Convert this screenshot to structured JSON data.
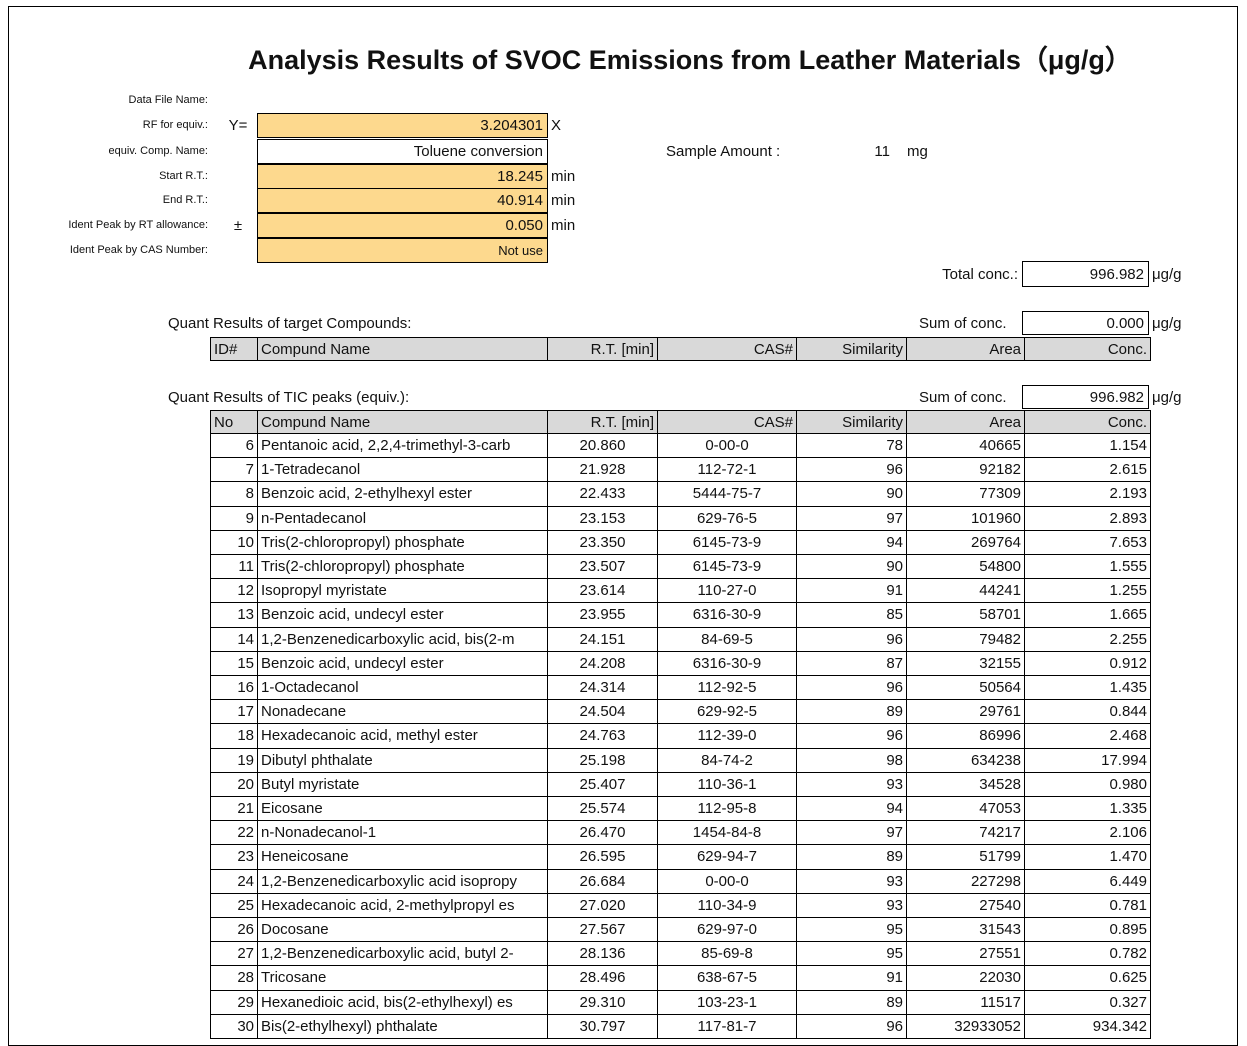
{
  "title": "Analysis Results of SVOC Emissions from Leather Materials（μg/g）",
  "settings": [
    {
      "label": "Data File Name:"
    },
    {
      "label": "RF for equiv.:",
      "prefix": "Y=",
      "value": "3.204301",
      "unit": "X"
    },
    {
      "label": "equiv. Comp. Name:",
      "value": "Toluene conversion"
    },
    {
      "label": "Start R.T.:",
      "value": "18.245",
      "unit": "min"
    },
    {
      "label": "End R.T.:",
      "value": "40.914",
      "unit": "min"
    },
    {
      "label": "Ident Peak by RT allowance:",
      "prefix": "±",
      "value": "0.050",
      "unit": "min"
    },
    {
      "label": "Ident Peak by CAS Number:",
      "value": "Not use"
    }
  ],
  "sample": {
    "label": "Sample Amount :",
    "value": "11",
    "unit": "mg"
  },
  "total": {
    "label": "Total conc.:",
    "value": "996.982",
    "unit": "μg/g"
  },
  "target": {
    "title": "Quant Results of target Compounds:",
    "sum_label": "Sum of  conc.",
    "sum_value": "0.000",
    "sum_unit": "μg/g",
    "columns": [
      "ID#",
      "Compund Name",
      "R.T. [min]",
      "CAS#",
      "Similarity",
      "Area",
      "Conc."
    ]
  },
  "tic": {
    "title": "Quant Results of TIC peaks (equiv.):",
    "sum_label": "Sum of  conc.",
    "sum_value": "996.982",
    "sum_unit": "μg/g",
    "columns": [
      "No",
      "Compund Name",
      "R.T. [min]",
      "CAS#",
      "Similarity",
      "Area",
      "Conc."
    ],
    "rows": [
      [
        "6",
        "Pentanoic acid, 2,2,4-trimethyl-3-carb",
        "20.860",
        "0-00-0",
        "78",
        "40665",
        "1.154"
      ],
      [
        "7",
        "1-Tetradecanol",
        "21.928",
        "112-72-1",
        "96",
        "92182",
        "2.615"
      ],
      [
        "8",
        "Benzoic acid, 2-ethylhexyl ester",
        "22.433",
        "5444-75-7",
        "90",
        "77309",
        "2.193"
      ],
      [
        "9",
        "n-Pentadecanol",
        "23.153",
        "629-76-5",
        "97",
        "101960",
        "2.893"
      ],
      [
        "10",
        "Tris(2-chloropropyl) phosphate",
        "23.350",
        "6145-73-9",
        "94",
        "269764",
        "7.653"
      ],
      [
        "11",
        "Tris(2-chloropropyl) phosphate",
        "23.507",
        "6145-73-9",
        "90",
        "54800",
        "1.555"
      ],
      [
        "12",
        "Isopropyl myristate",
        "23.614",
        "110-27-0",
        "91",
        "44241",
        "1.255"
      ],
      [
        "13",
        "Benzoic acid, undecyl ester",
        "23.955",
        "6316-30-9",
        "85",
        "58701",
        "1.665"
      ],
      [
        "14",
        "1,2-Benzenedicarboxylic acid, bis(2-m",
        "24.151",
        "84-69-5",
        "96",
        "79482",
        "2.255"
      ],
      [
        "15",
        "Benzoic acid, undecyl ester",
        "24.208",
        "6316-30-9",
        "87",
        "32155",
        "0.912"
      ],
      [
        "16",
        "1-Octadecanol",
        "24.314",
        "112-92-5",
        "96",
        "50564",
        "1.435"
      ],
      [
        "17",
        "Nonadecane",
        "24.504",
        "629-92-5",
        "89",
        "29761",
        "0.844"
      ],
      [
        "18",
        "Hexadecanoic acid, methyl ester",
        "24.763",
        "112-39-0",
        "96",
        "86996",
        "2.468"
      ],
      [
        "19",
        "Dibutyl phthalate",
        "25.198",
        "84-74-2",
        "98",
        "634238",
        "17.994"
      ],
      [
        "20",
        "Butyl myristate",
        "25.407",
        "110-36-1",
        "93",
        "34528",
        "0.980"
      ],
      [
        "21",
        "Eicosane",
        "25.574",
        "112-95-8",
        "94",
        "47053",
        "1.335"
      ],
      [
        "22",
        "n-Nonadecanol-1",
        "26.470",
        "1454-84-8",
        "97",
        "74217",
        "2.106"
      ],
      [
        "23",
        "Heneicosane",
        "26.595",
        "629-94-7",
        "89",
        "51799",
        "1.470"
      ],
      [
        "24",
        "1,2-Benzenedicarboxylic acid isopropy",
        "26.684",
        "0-00-0",
        "93",
        "227298",
        "6.449"
      ],
      [
        "25",
        "Hexadecanoic acid, 2-methylpropyl es",
        "27.020",
        "110-34-9",
        "93",
        "27540",
        "0.781"
      ],
      [
        "26",
        "Docosane",
        "27.567",
        "629-97-0",
        "95",
        "31543",
        "0.895"
      ],
      [
        "27",
        "1,2-Benzenedicarboxylic acid, butyl 2-",
        "28.136",
        "85-69-8",
        "95",
        "27551",
        "0.782"
      ],
      [
        "28",
        "Tricosane",
        "28.496",
        "638-67-5",
        "91",
        "22030",
        "0.625"
      ],
      [
        "29",
        "Hexanedioic acid, bis(2-ethylhexyl) es",
        "29.310",
        "103-23-1",
        "89",
        "11517",
        "0.327"
      ],
      [
        "30",
        "Bis(2-ethylhexyl) phthalate",
        "30.797",
        "117-81-7",
        "96",
        "32933052",
        "934.342"
      ]
    ]
  }
}
